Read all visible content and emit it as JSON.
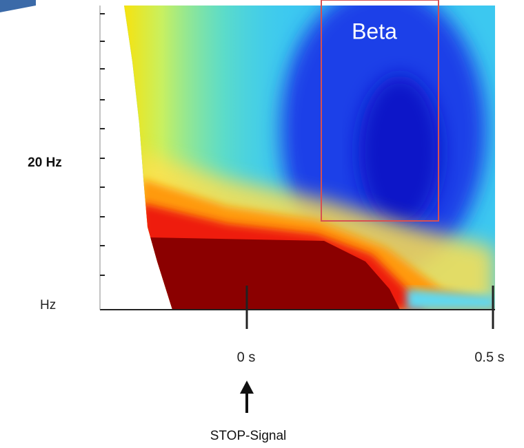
{
  "labels": {
    "y_top": "20 Hz",
    "y_bottom": "Hz",
    "x_left": "0 s",
    "x_right": "0.5 s",
    "box": "Beta",
    "event": "STOP-Signal"
  }
}
